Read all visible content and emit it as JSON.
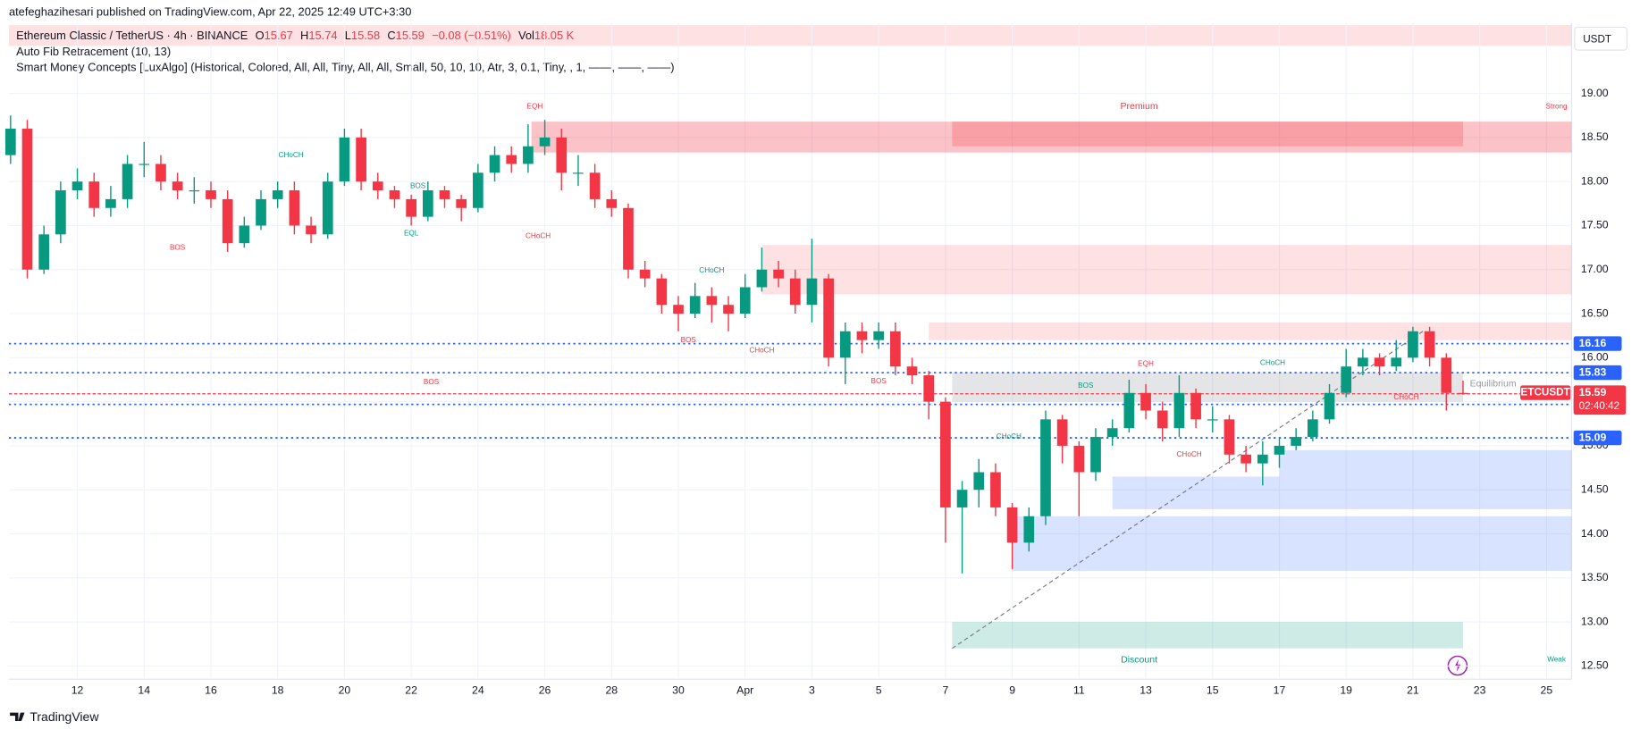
{
  "header": {
    "published": "atefeghazihesari published on TradingView.com, Apr 22, 2025 12:49 UTC+3:30",
    "symbol": "Ethereum Classic / TetherUS · 4h · BINANCE",
    "ohlc": [
      {
        "key": "O",
        "value": "15.67"
      },
      {
        "key": "H",
        "value": "15.74"
      },
      {
        "key": "L",
        "value": "15.58"
      },
      {
        "key": "C",
        "value": "15.59"
      }
    ],
    "change": "−0.08 (−0.51%)",
    "vol_key": "Vol",
    "vol": "18.05 K",
    "indicators": [
      "Auto Fib Retracement (10, 13)",
      "Smart Money Concepts [LuxAlgo] (Historical, Colored, All, All, Tiny, All, All, Small, 50, 10, 10, Atr, 3, 0.1, Tiny, , 1, ——, ——, ——)"
    ]
  },
  "footer": "TradingView",
  "chart_data": {
    "type": "candlestick",
    "currency": "USDT",
    "symbol": "ETCUSDT",
    "countdown": "02:40:42",
    "up_color": "#089981",
    "down_color": "#f23645",
    "x": [
      10,
      10.5,
      11,
      11.5,
      12,
      12.5,
      13,
      13.5,
      14,
      14.5,
      15,
      15.5,
      16,
      16.5,
      17,
      17.5,
      18,
      18.5,
      19,
      19.5,
      20,
      20.5,
      21,
      21.5,
      22,
      22.5,
      23,
      23.5,
      24,
      24.5,
      25,
      25.5,
      26,
      26.5,
      27,
      27.5,
      28,
      28.5,
      29,
      29.5,
      30,
      30.5,
      31,
      31.5,
      32,
      32.5,
      33,
      33.5,
      34,
      34.5,
      35,
      35.5,
      36,
      36.5,
      37,
      37.5,
      38,
      38.5,
      39,
      39.5,
      40,
      40.5,
      41,
      41.5,
      42,
      42.5,
      43,
      43.5,
      44,
      44.5,
      45,
      45.5,
      46,
      46.5,
      47,
      47.5,
      48,
      48.5,
      49,
      49.5,
      50,
      50.5,
      51,
      51.5,
      52,
      52.5,
      53,
      53.5
    ],
    "open": [
      18.3,
      18.6,
      17.0,
      17.4,
      17.9,
      18.0,
      17.7,
      17.8,
      18.2,
      18.2,
      18.0,
      17.9,
      17.9,
      17.8,
      17.3,
      17.5,
      17.8,
      17.9,
      17.5,
      17.4,
      18.0,
      18.5,
      18.0,
      17.9,
      17.8,
      17.6,
      17.9,
      17.8,
      17.7,
      18.1,
      18.3,
      18.2,
      18.4,
      18.5,
      18.1,
      18.1,
      17.8,
      17.7,
      17.0,
      16.9,
      16.6,
      16.5,
      16.7,
      16.6,
      16.5,
      16.8,
      17.0,
      16.9,
      16.6,
      16.9,
      16.0,
      16.3,
      16.2,
      16.3,
      15.9,
      15.8,
      15.5,
      14.3,
      14.5,
      14.7,
      14.3,
      13.9,
      14.2,
      15.3,
      15.0,
      14.7,
      15.1,
      15.2,
      15.6,
      15.4,
      15.2,
      15.6,
      15.3,
      15.3,
      14.9,
      14.8,
      14.9,
      15.0,
      15.1,
      15.3,
      15.6,
      15.9,
      16.0,
      15.9,
      16.0,
      16.3,
      16.0,
      15.6
    ],
    "high": [
      18.75,
      18.7,
      17.5,
      18.0,
      18.15,
      18.1,
      17.95,
      18.3,
      18.45,
      18.3,
      18.1,
      18.05,
      18.0,
      17.9,
      17.6,
      17.9,
      18.0,
      18.0,
      17.6,
      18.1,
      18.6,
      18.6,
      18.1,
      17.95,
      17.85,
      18.0,
      17.95,
      17.85,
      18.2,
      18.4,
      18.4,
      18.65,
      18.7,
      18.6,
      18.3,
      18.2,
      17.9,
      17.75,
      17.1,
      16.95,
      16.7,
      16.85,
      16.8,
      16.7,
      16.95,
      17.25,
      17.1,
      17.0,
      17.35,
      16.95,
      16.4,
      16.4,
      16.4,
      16.4,
      16.0,
      15.85,
      15.55,
      14.6,
      14.85,
      14.8,
      14.35,
      14.3,
      15.4,
      15.35,
      15.05,
      15.2,
      15.3,
      15.75,
      15.7,
      15.5,
      15.8,
      15.65,
      15.45,
      15.35,
      15.0,
      15.05,
      15.1,
      15.2,
      15.4,
      15.7,
      16.1,
      16.1,
      16.05,
      16.2,
      16.35,
      16.35,
      16.05,
      15.74
    ],
    "low": [
      18.2,
      16.9,
      16.95,
      17.3,
      17.8,
      17.6,
      17.6,
      17.7,
      18.05,
      17.9,
      17.8,
      17.75,
      17.7,
      17.2,
      17.25,
      17.45,
      17.7,
      17.4,
      17.3,
      17.35,
      17.95,
      17.9,
      17.8,
      17.7,
      17.5,
      17.55,
      17.7,
      17.55,
      17.65,
      18.0,
      18.1,
      18.1,
      18.3,
      17.9,
      17.95,
      17.7,
      17.6,
      16.9,
      16.8,
      16.5,
      16.3,
      16.45,
      16.4,
      16.3,
      16.45,
      16.75,
      16.8,
      16.5,
      16.4,
      15.9,
      15.7,
      16.05,
      16.1,
      15.8,
      15.7,
      15.3,
      13.9,
      13.55,
      14.3,
      14.2,
      13.6,
      13.8,
      14.1,
      14.8,
      14.2,
      14.6,
      15.0,
      15.15,
      15.3,
      15.05,
      15.1,
      15.2,
      15.15,
      14.8,
      14.7,
      14.55,
      14.75,
      14.95,
      15.05,
      15.25,
      15.55,
      15.8,
      15.8,
      15.85,
      15.95,
      15.9,
      15.4,
      15.58
    ],
    "close": [
      18.6,
      17.0,
      17.4,
      17.9,
      18.0,
      17.7,
      17.8,
      18.2,
      18.2,
      18.0,
      17.9,
      17.9,
      17.8,
      17.3,
      17.5,
      17.8,
      17.9,
      17.5,
      17.4,
      18.0,
      18.5,
      18.0,
      17.9,
      17.8,
      17.6,
      17.9,
      17.8,
      17.7,
      18.1,
      18.3,
      18.2,
      18.4,
      18.5,
      18.1,
      18.1,
      17.8,
      17.7,
      17.0,
      16.9,
      16.6,
      16.5,
      16.7,
      16.6,
      16.5,
      16.8,
      17.0,
      16.9,
      16.6,
      16.9,
      16.0,
      16.3,
      16.2,
      16.3,
      15.9,
      15.8,
      15.5,
      14.3,
      14.5,
      14.7,
      14.3,
      13.9,
      14.2,
      15.3,
      15.0,
      14.7,
      15.1,
      15.2,
      15.6,
      15.4,
      15.2,
      15.6,
      15.3,
      15.3,
      14.9,
      14.8,
      14.9,
      15.0,
      15.1,
      15.3,
      15.6,
      15.9,
      16.0,
      15.9,
      16.0,
      16.3,
      16.0,
      15.6,
      15.59
    ],
    "xlim": [
      9.95,
      56.75
    ],
    "xticks": [
      12,
      14,
      16,
      18,
      20,
      22,
      24,
      26,
      28,
      30,
      {
        "value": 32,
        "label": "Apr"
      },
      {
        "value": 34,
        "label": "3"
      },
      {
        "value": 36,
        "label": "5"
      },
      {
        "value": 38,
        "label": "7"
      },
      {
        "value": 40,
        "label": "9"
      },
      {
        "value": 42,
        "label": "11"
      },
      {
        "value": 44,
        "label": "13"
      },
      {
        "value": 46,
        "label": "15"
      },
      {
        "value": 48,
        "label": "17"
      },
      {
        "value": 50,
        "label": "19"
      },
      {
        "value": 52,
        "label": "21"
      },
      {
        "value": 54,
        "label": "23"
      },
      {
        "value": 56,
        "label": "25"
      }
    ],
    "ylim": [
      12.35,
      19.8
    ],
    "yticks": [
      {
        "value": 12.5,
        "label": "12.50"
      },
      {
        "value": 13,
        "label": "13.00"
      },
      {
        "value": 13.5,
        "label": "13.50"
      },
      {
        "value": 14,
        "label": "14.00"
      },
      {
        "value": 14.5,
        "label": "14.50"
      },
      {
        "value": 15,
        "label": "15.00"
      },
      {
        "value": 15.5,
        "label": "15.50"
      },
      {
        "value": 16,
        "label": "16.00"
      },
      {
        "value": 16.5,
        "label": "16.50"
      },
      {
        "value": 17,
        "label": "17.00"
      },
      {
        "value": 17.5,
        "label": "17.50"
      },
      {
        "value": 18,
        "label": "18.00"
      },
      {
        "value": 18.5,
        "label": "18.50"
      },
      {
        "value": 19,
        "label": "19.00"
      }
    ],
    "grid": true,
    "levels": [
      16.16,
      15.83,
      15.47,
      15.09
    ],
    "level_color": "#2962ff",
    "last_price": 15.59,
    "zones": [
      {
        "from": 25.6,
        "to": 56.75,
        "low": 18.33,
        "high": 18.68,
        "color": "rgba(242,54,69,0.3)"
      },
      {
        "from": 38.2,
        "to": 53.5,
        "low": 18.4,
        "high": 18.68,
        "color": "rgba(242,54,69,0.25)"
      },
      {
        "from": 32.5,
        "to": 56.75,
        "low": 16.72,
        "high": 17.28,
        "color": "rgba(242,54,69,0.15)"
      },
      {
        "from": 37.5,
        "to": 56.75,
        "low": 16.2,
        "high": 16.4,
        "color": "rgba(242,54,69,0.15)"
      },
      {
        "from": 38.2,
        "to": 53.5,
        "low": 15.5,
        "high": 15.83,
        "color": "rgba(120,123,134,0.2)"
      },
      {
        "from": 43.0,
        "to": 56.75,
        "low": 14.28,
        "high": 14.65,
        "color": "rgba(41,98,255,0.18)"
      },
      {
        "from": 48.0,
        "to": 56.75,
        "low": 14.65,
        "high": 14.95,
        "color": "rgba(41,98,255,0.18)"
      },
      {
        "from": 40.0,
        "to": 56.75,
        "low": 13.58,
        "high": 14.2,
        "color": "rgba(41,98,255,0.18)"
      },
      {
        "from": 38.2,
        "to": 53.5,
        "low": 12.7,
        "high": 13.0,
        "color": "rgba(8,153,129,0.2)"
      }
    ],
    "trendline": {
      "from": [
        38.2,
        12.7
      ],
      "to": [
        52.3,
        16.3
      ]
    },
    "annotations": [
      {
        "text": "Premium",
        "at": [
          43.8,
          18.85
        ],
        "color": "#f23645"
      },
      {
        "text": "Discount",
        "at": [
          43.8,
          12.57
        ],
        "color": "#089981"
      },
      {
        "text": "Equilibrium",
        "at": [
          54.4,
          15.7
        ],
        "color": "#9598a1"
      },
      {
        "text": "Strong",
        "at": [
          56.3,
          18.85
        ],
        "color": "#f23645"
      },
      {
        "text": "Weak",
        "at": [
          56.3,
          12.57
        ],
        "color": "#089981"
      },
      {
        "text": "EQH",
        "at": [
          25.7,
          18.85
        ],
        "color": "#f23645"
      },
      {
        "text": "EQH",
        "at": [
          44.0,
          15.93
        ],
        "color": "#f23645"
      },
      {
        "text": "EQL",
        "at": [
          22.0,
          17.41
        ],
        "color": "#089981"
      },
      {
        "text": "BOS",
        "at": [
          15.0,
          17.25
        ],
        "color": "#f23645"
      },
      {
        "text": "BOS",
        "at": [
          22.2,
          17.95
        ],
        "color": "#089981"
      },
      {
        "text": "BOS",
        "at": [
          22.6,
          15.72
        ],
        "color": "#f23645"
      },
      {
        "text": "BOS",
        "at": [
          30.3,
          16.2
        ],
        "color": "#f23645"
      },
      {
        "text": "BOS",
        "at": [
          36.0,
          15.73
        ],
        "color": "#f23645"
      },
      {
        "text": "BOS",
        "at": [
          42.2,
          15.68
        ],
        "color": "#089981"
      },
      {
        "text": "CHoCH",
        "at": [
          18.4,
          18.3
        ],
        "color": "#089981"
      },
      {
        "text": "CHoCH",
        "at": [
          25.8,
          17.38
        ],
        "color": "#f23645"
      },
      {
        "text": "CHoCH",
        "at": [
          31.0,
          16.99
        ],
        "color": "#089981"
      },
      {
        "text": "CHoCH",
        "at": [
          32.5,
          16.08
        ],
        "color": "#f23645"
      },
      {
        "text": "CHoCH",
        "at": [
          39.9,
          15.1
        ],
        "color": "#089981"
      },
      {
        "text": "CHoCH",
        "at": [
          45.3,
          14.9
        ],
        "color": "#f23645"
      },
      {
        "text": "CHoCH",
        "at": [
          47.8,
          15.94
        ],
        "color": "#089981"
      },
      {
        "text": "CHoCH",
        "at": [
          51.8,
          15.55
        ],
        "color": "#f23645"
      }
    ]
  }
}
